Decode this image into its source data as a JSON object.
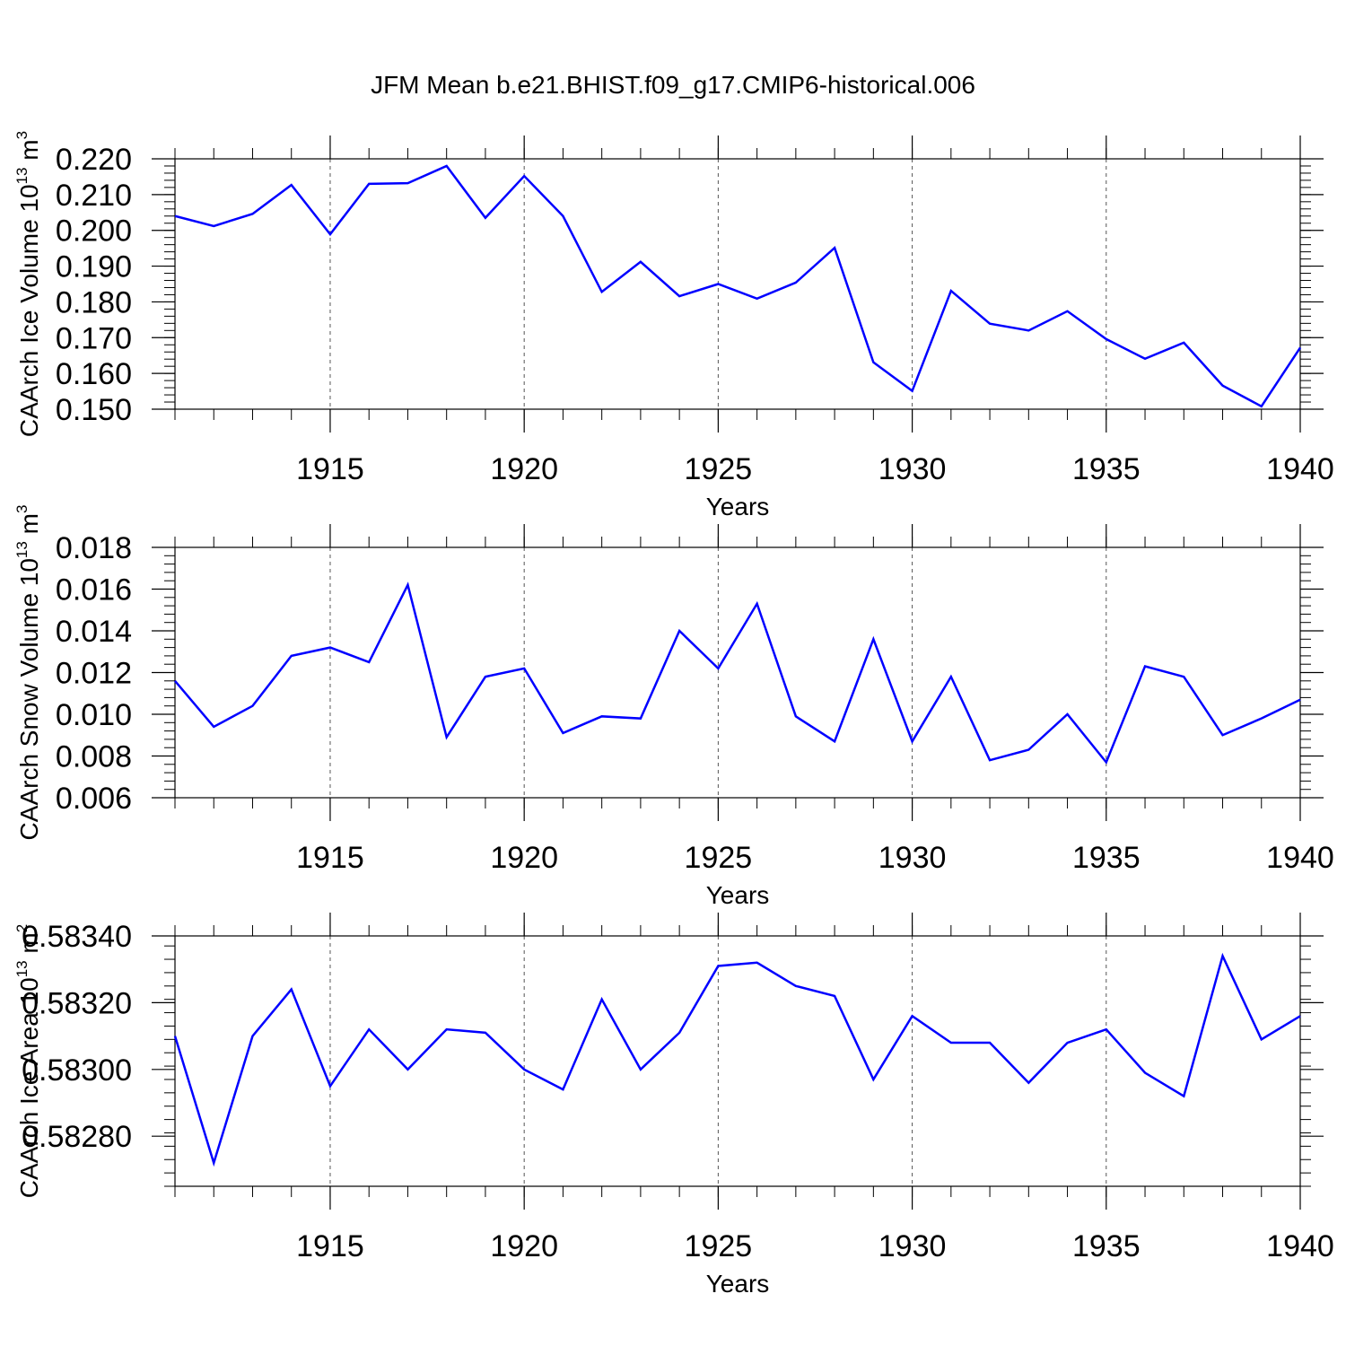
{
  "title": "JFM Mean b.e21.BHIST.f09_g17.CMIP6-historical.006",
  "colors": {
    "line": "#0000ff",
    "axis": "#000000",
    "grid": "#555555"
  },
  "chart_data": [
    {
      "type": "line",
      "ylabel_parts": [
        "CAArch Ice Volume 10",
        "13",
        " m",
        "3"
      ],
      "xlabel": "Years",
      "xlim": [
        1911,
        1940
      ],
      "ylim": [
        0.15,
        0.22
      ],
      "yticks": [
        "0.150",
        "0.160",
        "0.170",
        "0.180",
        "0.190",
        "0.200",
        "0.210",
        "0.220"
      ],
      "xticks": [
        "1915",
        "1920",
        "1925",
        "1930",
        "1935",
        "1940"
      ],
      "grid": "vertical dashed at major x ticks",
      "x": [
        1911,
        1912,
        1913,
        1914,
        1915,
        1916,
        1917,
        1918,
        1919,
        1920,
        1921,
        1922,
        1923,
        1924,
        1925,
        1926,
        1927,
        1928,
        1929,
        1930,
        1931,
        1932,
        1933,
        1934,
        1935,
        1936,
        1937,
        1938,
        1939,
        1940
      ],
      "series": [
        {
          "values": [
            0.204,
            0.2012,
            0.2046,
            0.2127,
            0.1989,
            0.213,
            0.2132,
            0.218,
            0.2035,
            0.2152,
            0.204,
            0.1828,
            0.1912,
            0.1816,
            0.185,
            0.1809,
            0.1854,
            0.1951,
            0.1631,
            0.1551,
            0.1831,
            0.1739,
            0.172,
            0.1774,
            0.1696,
            0.1641,
            0.1686,
            0.1566,
            0.1508,
            0.1672
          ]
        }
      ]
    },
    {
      "type": "line",
      "ylabel_parts": [
        "CAArch Snow Volume 10",
        "13",
        " m",
        "3"
      ],
      "xlabel": "Years",
      "xlim": [
        1911,
        1940
      ],
      "ylim": [
        0.006,
        0.018
      ],
      "yticks": [
        "0.006",
        "0.008",
        "0.010",
        "0.012",
        "0.014",
        "0.016",
        "0.018"
      ],
      "xticks": [
        "1915",
        "1920",
        "1925",
        "1930",
        "1935",
        "1940"
      ],
      "grid": "vertical dashed at major x ticks",
      "x": [
        1911,
        1912,
        1913,
        1914,
        1915,
        1916,
        1917,
        1918,
        1919,
        1920,
        1921,
        1922,
        1923,
        1924,
        1925,
        1926,
        1927,
        1928,
        1929,
        1930,
        1931,
        1932,
        1933,
        1934,
        1935,
        1936,
        1937,
        1938,
        1939,
        1940
      ],
      "series": [
        {
          "values": [
            0.0116,
            0.0094,
            0.0104,
            0.0128,
            0.0132,
            0.0125,
            0.0162,
            0.0089,
            0.0118,
            0.0122,
            0.0091,
            0.0099,
            0.0098,
            0.014,
            0.0122,
            0.0153,
            0.0099,
            0.0087,
            0.0136,
            0.0087,
            0.0118,
            0.0078,
            0.0083,
            0.01,
            0.0077,
            0.0123,
            0.0118,
            0.009,
            0.0098,
            0.0107
          ]
        }
      ]
    },
    {
      "type": "line",
      "ylabel_parts": [
        "CAArch Ice Area 10",
        "13",
        " m",
        "2"
      ],
      "xlabel": "Years",
      "xlim": [
        1911,
        1940
      ],
      "ylim": [
        0.58265,
        0.5834
      ],
      "yticks": [
        "0.58280",
        "0.58300",
        "0.58320",
        "0.58340"
      ],
      "xticks": [
        "1915",
        "1920",
        "1925",
        "1930",
        "1935",
        "1940"
      ],
      "grid": "vertical dashed at major x ticks",
      "x": [
        1911,
        1912,
        1913,
        1914,
        1915,
        1916,
        1917,
        1918,
        1919,
        1920,
        1921,
        1922,
        1923,
        1924,
        1925,
        1926,
        1927,
        1928,
        1929,
        1930,
        1931,
        1932,
        1933,
        1934,
        1935,
        1936,
        1937,
        1938,
        1939,
        1940
      ],
      "series": [
        {
          "values": [
            0.5831,
            0.58272,
            0.5831,
            0.58324,
            0.58295,
            0.58312,
            0.583,
            0.58312,
            0.58311,
            0.583,
            0.58294,
            0.58321,
            0.583,
            0.58311,
            0.58331,
            0.58332,
            0.58325,
            0.58322,
            0.58297,
            0.58316,
            0.58308,
            0.58308,
            0.58296,
            0.58308,
            0.58312,
            0.58299,
            0.58292,
            0.58334,
            0.58309,
            0.58316
          ]
        }
      ]
    }
  ]
}
